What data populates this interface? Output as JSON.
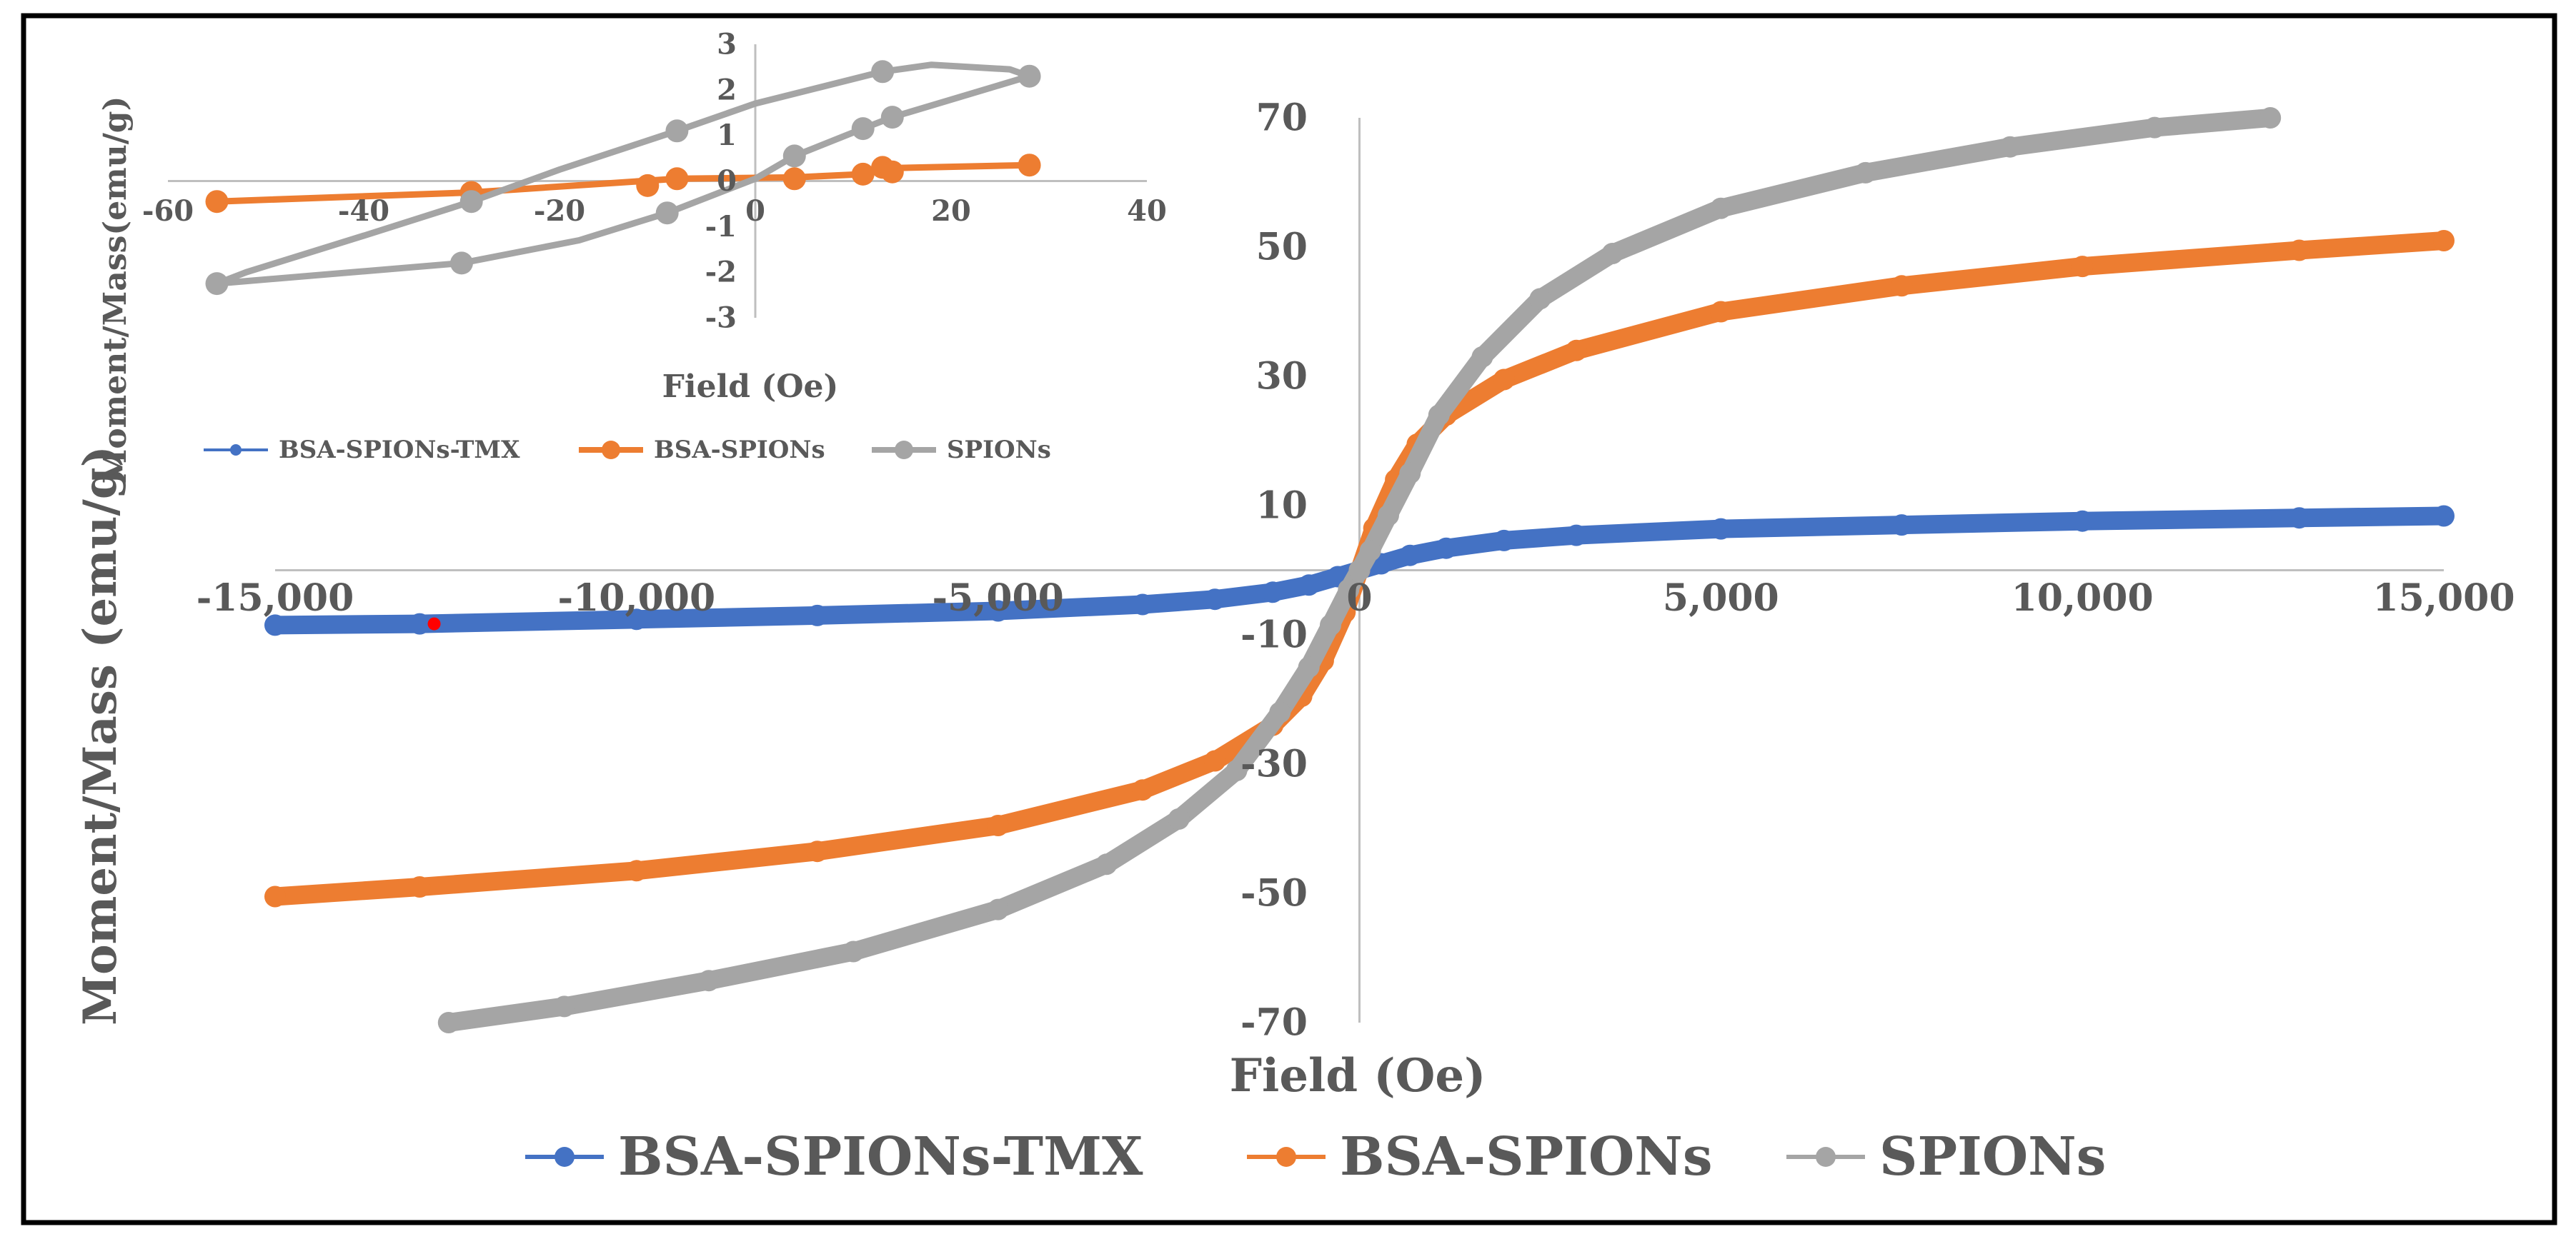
{
  "chart_data": [
    {
      "name": "main",
      "type": "line",
      "xlabel": "Field (Oe)",
      "ylabel": "Moment/Mass (emu/g)",
      "xlim": [
        -15000,
        15000
      ],
      "ylim": [
        -70,
        70
      ],
      "x_ticks": [
        -15000,
        -10000,
        -5000,
        0,
        5000,
        10000,
        15000
      ],
      "x_tick_labels": [
        "-15,000",
        "-10,000",
        "-5,000",
        "0",
        "5,000",
        "10,000",
        "15,000"
      ],
      "y_ticks": [
        -70,
        -50,
        -30,
        -10,
        10,
        30,
        50,
        70
      ],
      "y_tick_labels": [
        "-70",
        "-50",
        "-30",
        "-10",
        "10",
        "30",
        "50",
        "70"
      ],
      "legend_position": "bottom",
      "series": [
        {
          "name": "BSA-SPIONs-TMX",
          "color": "#4472c4",
          "x": [
            -15000,
            -13000,
            -10000,
            -7500,
            -5000,
            -3000,
            -2000,
            -1200,
            -700,
            -300,
            0,
            300,
            700,
            1200,
            2000,
            3000,
            5000,
            7500,
            10000,
            13000,
            15000
          ],
          "y": [
            -8.5,
            -8.3,
            -7.6,
            -7.0,
            -6.3,
            -5.3,
            -4.5,
            -3.4,
            -2.3,
            -1.0,
            0,
            1.0,
            2.3,
            3.4,
            4.6,
            5.4,
            6.4,
            7.0,
            7.6,
            8.1,
            8.4
          ]
        },
        {
          "name": "BSA-SPIONs",
          "color": "#ed7d31",
          "x": [
            -15000,
            -13000,
            -10000,
            -7500,
            -5000,
            -3000,
            -2000,
            -1200,
            -800,
            -500,
            -200,
            0,
            200,
            500,
            800,
            1200,
            2000,
            3000,
            5000,
            7500,
            10000,
            13000,
            15000
          ],
          "y": [
            -50.5,
            -49.0,
            -46.5,
            -43.5,
            -39.5,
            -34.0,
            -29.5,
            -24.0,
            -19.5,
            -14.0,
            -6.5,
            0,
            6.5,
            14.0,
            19.5,
            24.0,
            29.5,
            34.0,
            40.0,
            44.0,
            47.0,
            49.5,
            51.0
          ]
        },
        {
          "name": "SPIONs",
          "color": "#a5a5a5",
          "x": [
            -12600,
            -11000,
            -9000,
            -7000,
            -5000,
            -3500,
            -2500,
            -1700,
            -1100,
            -700,
            -400,
            -150,
            0,
            150,
            400,
            700,
            1100,
            1700,
            2500,
            3500,
            5000,
            7000,
            9000,
            11000,
            12600
          ],
          "y": [
            -70,
            -67.5,
            -63.5,
            -59.0,
            -52.5,
            -45.5,
            -38.5,
            -31.0,
            -22.0,
            -15.0,
            -8.5,
            -3.0,
            0,
            3.0,
            8.5,
            15.0,
            24.0,
            33.0,
            42.0,
            49.0,
            56.0,
            61.5,
            65.5,
            68.5,
            70.0
          ]
        }
      ],
      "highlight_point": {
        "x": -12800,
        "y": -8.3,
        "color": "#ff0000"
      }
    },
    {
      "name": "inset",
      "type": "scatter",
      "xlabel": "Field (Oe)",
      "ylabel": "Moment/Mass(emu/g)",
      "xlim": [
        -60,
        40
      ],
      "ylim": [
        -3,
        3
      ],
      "x_ticks": [
        -60,
        -40,
        -20,
        0,
        20,
        40
      ],
      "x_tick_labels": [
        "-60",
        "-40",
        "-20",
        "0",
        "20",
        "40"
      ],
      "y_ticks": [
        -3,
        -2,
        -1,
        0,
        1,
        2,
        3
      ],
      "y_tick_labels": [
        "-3",
        "-2",
        "-1",
        "0",
        "1",
        "2",
        "3"
      ],
      "legend_position": "bottom",
      "series": [
        {
          "name": "BSA-SPIONs-TMX",
          "color": "#4472c4",
          "x": [],
          "y": []
        },
        {
          "name": "BSA-SPIONs",
          "color": "#ed7d31",
          "x": [
            -55,
            -29,
            -8,
            -11,
            4,
            11,
            13,
            14,
            28
          ],
          "y": [
            -0.45,
            -0.25,
            0.05,
            -0.1,
            0.05,
            0.15,
            0.3,
            0.2,
            0.35
          ],
          "line": [
            [
              -55,
              -0.45
            ],
            [
              -29,
              -0.25
            ],
            [
              -8,
              0.05
            ],
            [
              4,
              0.08
            ],
            [
              11,
              0.15
            ],
            [
              13,
              0.28
            ],
            [
              28,
              0.35
            ]
          ]
        },
        {
          "name": "SPIONs",
          "color": "#a5a5a5",
          "x": [
            -55,
            -30,
            -9,
            4,
            11,
            14,
            28,
            13,
            -8,
            -29
          ],
          "y": [
            -2.25,
            -1.8,
            -0.7,
            0.55,
            1.15,
            1.4,
            2.3,
            2.4,
            1.1,
            -0.45
          ],
          "line": [
            [
              -55,
              -2.25
            ],
            [
              -30,
              -1.8
            ],
            [
              -18,
              -1.3
            ],
            [
              -9,
              -0.7
            ],
            [
              0,
              0.05
            ],
            [
              4,
              0.55
            ],
            [
              11,
              1.15
            ],
            [
              14,
              1.4
            ],
            [
              28,
              2.3
            ],
            [
              26,
              2.45
            ],
            [
              18,
              2.55
            ],
            [
              13,
              2.4
            ],
            [
              0,
              1.7
            ],
            [
              -8,
              1.1
            ],
            [
              -20,
              0.25
            ],
            [
              -29,
              -0.45
            ],
            [
              -40,
              -1.2
            ],
            [
              -52,
              -2.0
            ],
            [
              -55,
              -2.25
            ]
          ]
        }
      ]
    }
  ]
}
